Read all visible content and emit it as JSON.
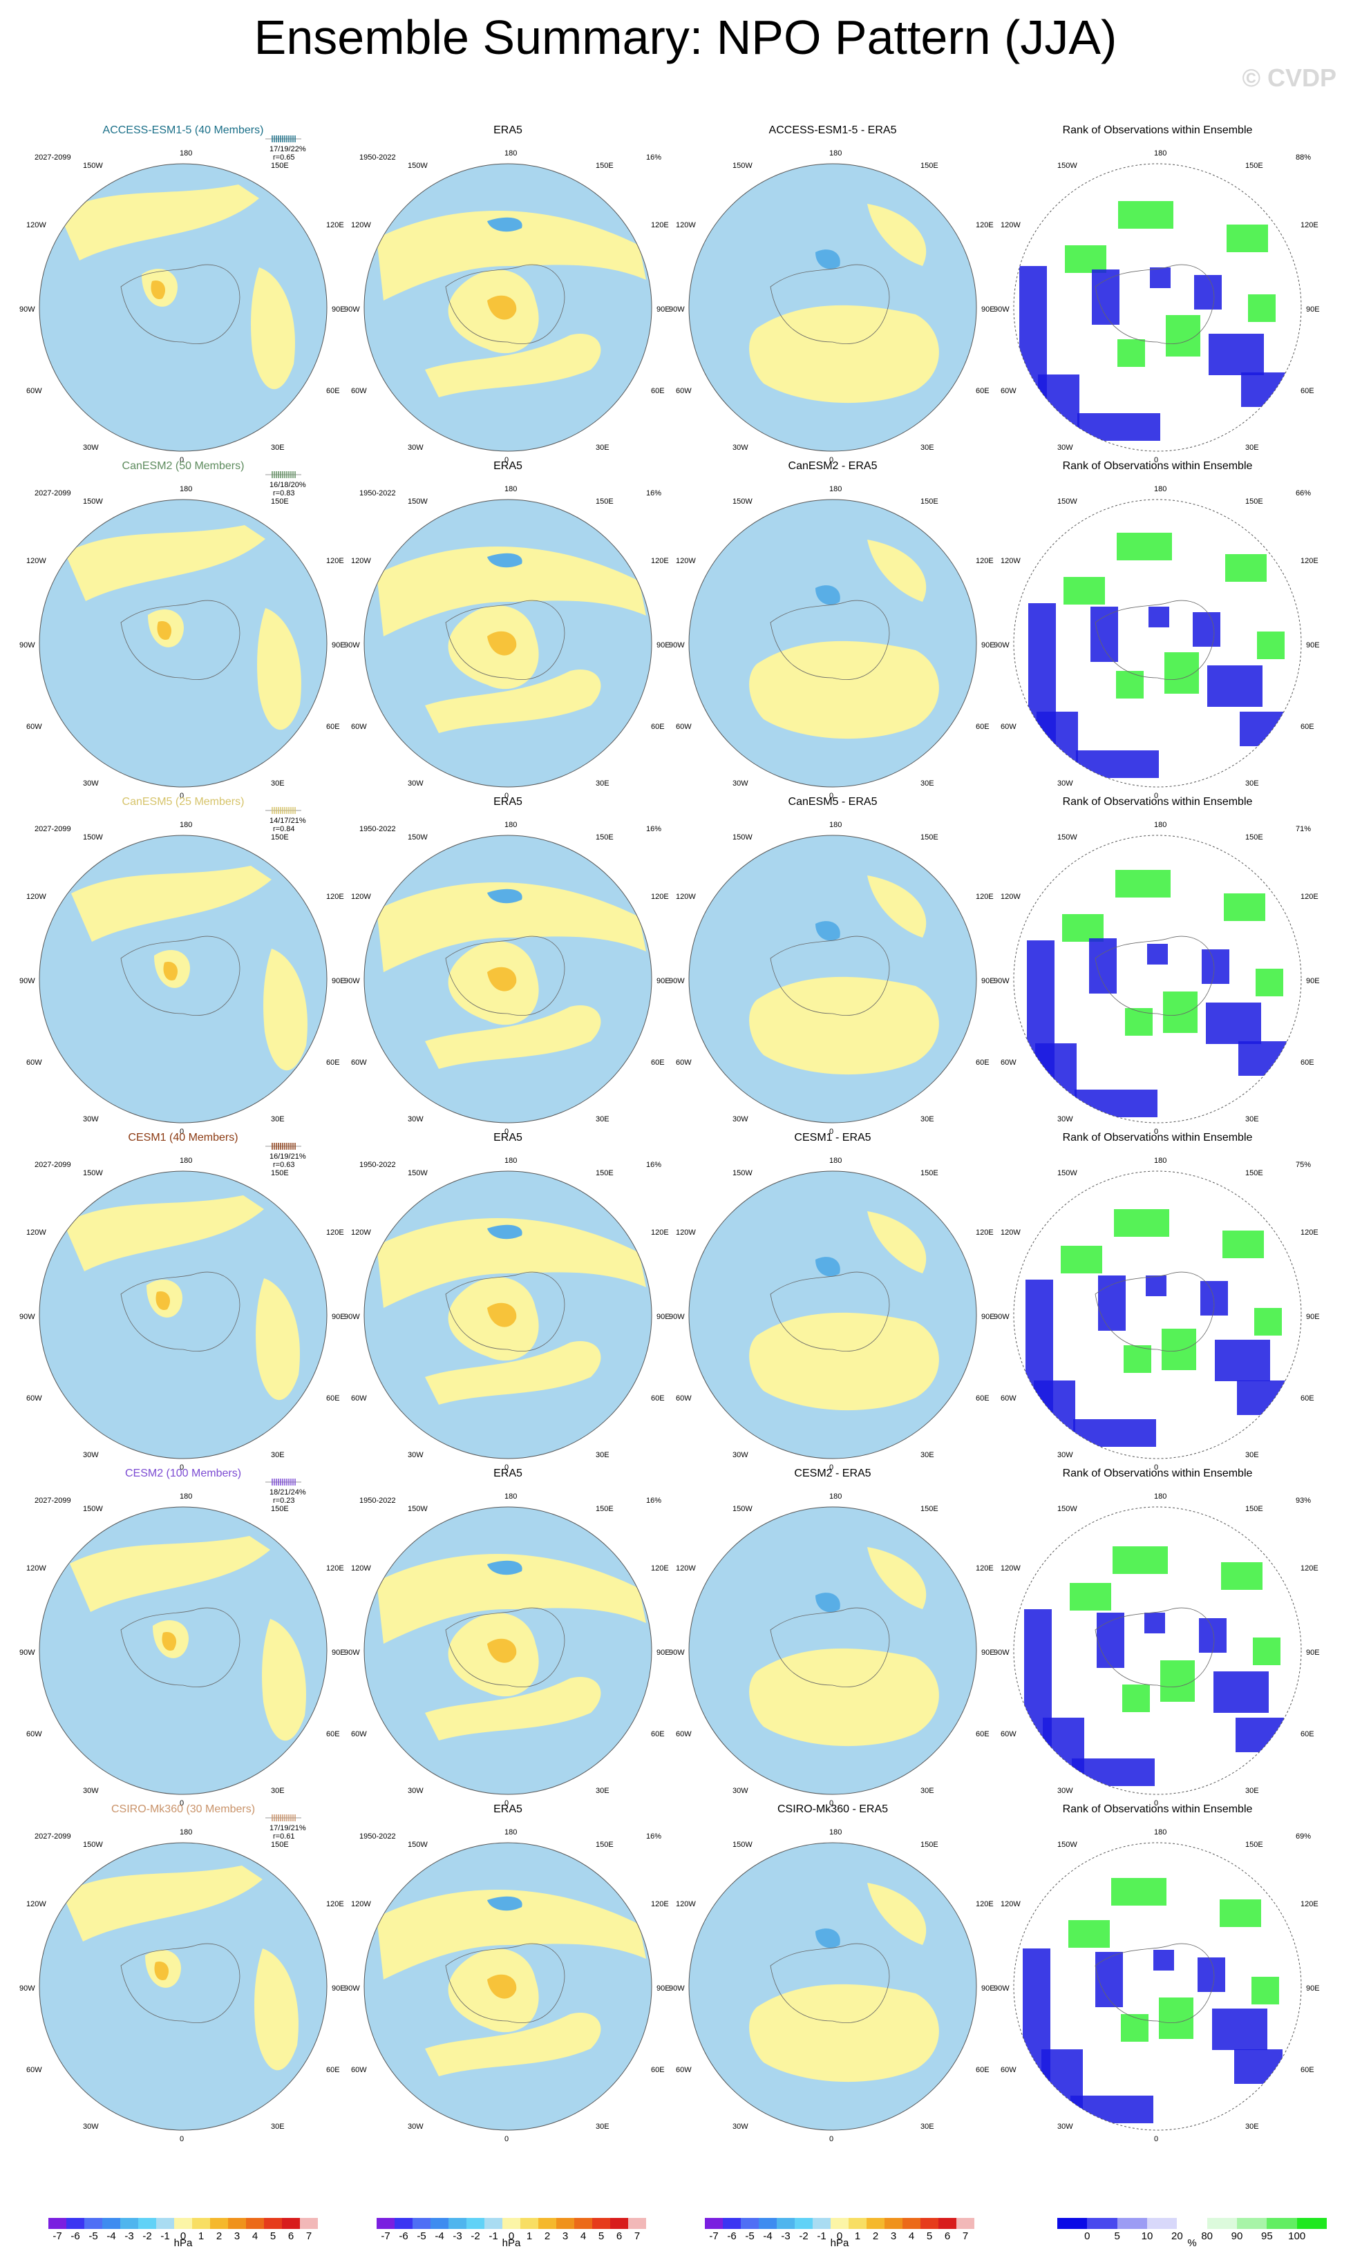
{
  "title": "Ensemble Summary: NPO Pattern (JJA)",
  "watermark": "© CVDP",
  "labels": {
    "lon_top": "180",
    "lon_bottom": "0",
    "lon_150w": "150W",
    "lon_150e": "150E",
    "lon_120w": "120W",
    "lon_120e": "120E",
    "lon_90w": "90W",
    "lon_90e": "90E",
    "lon_60w": "60W",
    "lon_60e": "60E",
    "lon_30w": "30W",
    "lon_30e": "30E",
    "model_years": "2027-2099",
    "obs_years": "1950-2022",
    "obs_pct": "16%",
    "obs_title": "ERA5",
    "rank_title": "Rank of Observations within Ensemble"
  },
  "colors": {
    "pos_light": "#fbf5a0",
    "neg_light": "#aad6ee",
    "pos_mid": "#f7c33a",
    "neg_mid": "#59aee6",
    "neg_strong": "#1cc0f4",
    "rank_blue": "#1a1ae0",
    "rank_green": "#38f03a"
  },
  "rows": [
    {
      "model": "ACCESS-ESM1-5 (40 Members)",
      "model_color": "#1a6f88",
      "stats": "17/19/22%",
      "corr": "r=0.65",
      "diff": "ACCESS-ESM1-5 - ERA5",
      "rank_pct": "88%"
    },
    {
      "model": "CanESM2 (50 Members)",
      "model_color": "#5d8b5d",
      "stats": "16/18/20%",
      "corr": "r=0.83",
      "diff": "CanESM2 - ERA5",
      "rank_pct": "66%"
    },
    {
      "model": "CanESM5 (25 Members)",
      "model_color": "#d6c36a",
      "stats": "14/17/21%",
      "corr": "r=0.84",
      "diff": "CanESM5 - ERA5",
      "rank_pct": "71%"
    },
    {
      "model": "CESM1 (40 Members)",
      "model_color": "#8b3a12",
      "stats": "16/19/21%",
      "corr": "r=0.63",
      "diff": "CESM1 - ERA5",
      "rank_pct": "75%"
    },
    {
      "model": "CESM2 (100 Members)",
      "model_color": "#7b4ad2",
      "stats": "18/21/24%",
      "corr": "r=0.23",
      "diff": "CESM2 - ERA5",
      "rank_pct": "93%"
    },
    {
      "model": "CSIRO-Mk360 (30 Members)",
      "model_color": "#c9936a",
      "stats": "17/19/21%",
      "corr": "r=0.61",
      "diff": "CSIRO-Mk360 - ERA5",
      "rank_pct": "69%"
    }
  ],
  "chart_data": [
    {
      "type": "heatmap",
      "title": "Ensemble Summary: NPO Pattern (JJA)",
      "projection": "north polar stereographic",
      "panel_types": [
        "ensemble mean NPO pattern",
        "observed NPO pattern (ERA5)",
        "model minus observations",
        "rank of observations within ensemble"
      ],
      "longitude_labels": [
        "180",
        "150E",
        "120E",
        "90E",
        "60E",
        "30E",
        "0",
        "30W",
        "60W",
        "90W",
        "120W",
        "150W"
      ]
    }
  ],
  "colorbars": {
    "hpa": {
      "colors": [
        "#7a1fe0",
        "#3a35f2",
        "#4f6ff5",
        "#3e8cf0",
        "#4fb5ee",
        "#61d2f7",
        "#a9dcf2",
        "#fcf5a6",
        "#f8de63",
        "#f5b82c",
        "#f0921b",
        "#ec6a18",
        "#e63b1b",
        "#d81c1c",
        "#f2b8b8"
      ],
      "ticks": [
        "-7",
        "-6",
        "-5",
        "-4",
        "-3",
        "-2",
        "-1",
        "0",
        "1",
        "2",
        "3",
        "4",
        "5",
        "6",
        "7"
      ],
      "unit": "hPa"
    },
    "rank": {
      "colors": [
        "#0b0be6",
        "#4848ee",
        "#9c9cf4",
        "#d8d8fa",
        "#ffffff",
        "#dcfadc",
        "#a8f4a8",
        "#62ee62",
        "#1fe81f"
      ],
      "ticks": [
        "0",
        "5",
        "10",
        "20",
        "80",
        "90",
        "95",
        "100"
      ],
      "unit": "%"
    }
  }
}
